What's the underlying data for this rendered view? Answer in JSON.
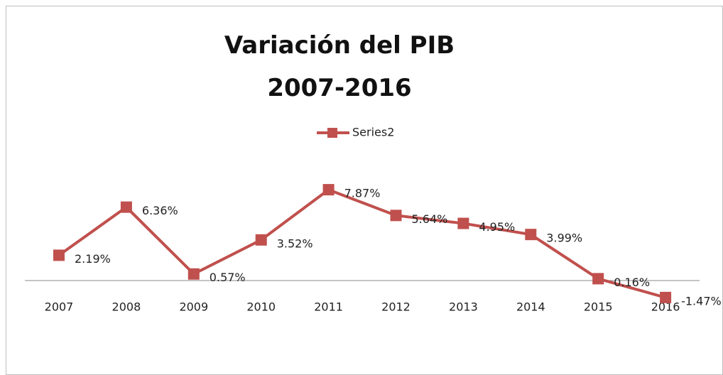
{
  "chart_data": {
    "type": "line",
    "title": "Variación del PIB\n2007-2016",
    "categories": [
      "2007",
      "2008",
      "2009",
      "2010",
      "2011",
      "2012",
      "2013",
      "2014",
      "2015",
      "2016"
    ],
    "series": [
      {
        "name": "Series2",
        "color": "#c0504d",
        "values": [
          2.19,
          6.36,
          0.57,
          3.52,
          7.87,
          5.64,
          4.95,
          3.99,
          0.16,
          -1.47
        ],
        "value_labels": [
          "2.19%",
          "6.36%",
          "0.57%",
          "3.52%",
          "7.87%",
          "5.64%",
          "4.95%",
          "3.99%",
          "0.16%",
          "-1.47%"
        ]
      }
    ],
    "ylim": [
      -2,
      8
    ],
    "legend": "top"
  }
}
